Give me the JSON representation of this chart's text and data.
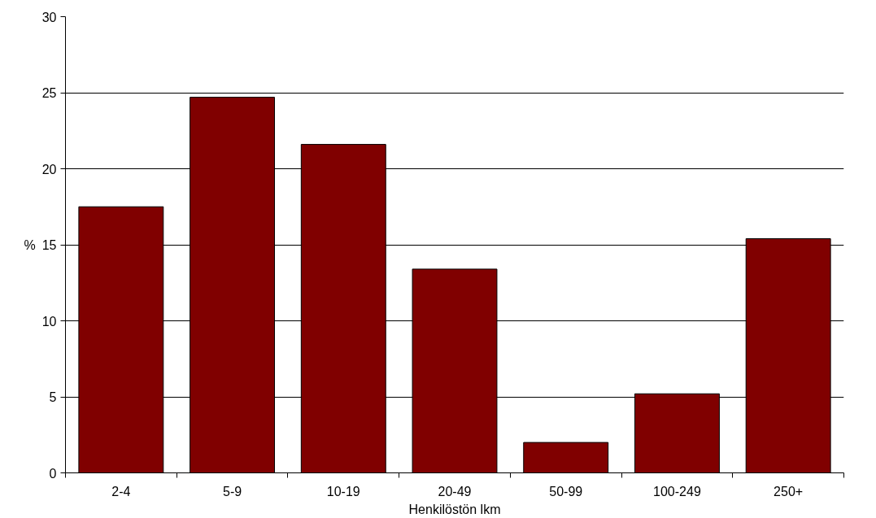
{
  "chart_data": {
    "type": "bar",
    "xlabel": "Henkilöstön lkm",
    "ylabel": "%",
    "categories": [
      "2-4",
      "5-9",
      "10-19",
      "20-49",
      "50-99",
      "100-249",
      "250+"
    ],
    "values": [
      17.5,
      24.7,
      21.6,
      13.4,
      2.0,
      5.2,
      15.4
    ],
    "color": "#800000",
    "ylim": [
      0,
      30
    ],
    "yticks": [
      0,
      5,
      10,
      15,
      20,
      25,
      30
    ],
    "grid": "y"
  }
}
